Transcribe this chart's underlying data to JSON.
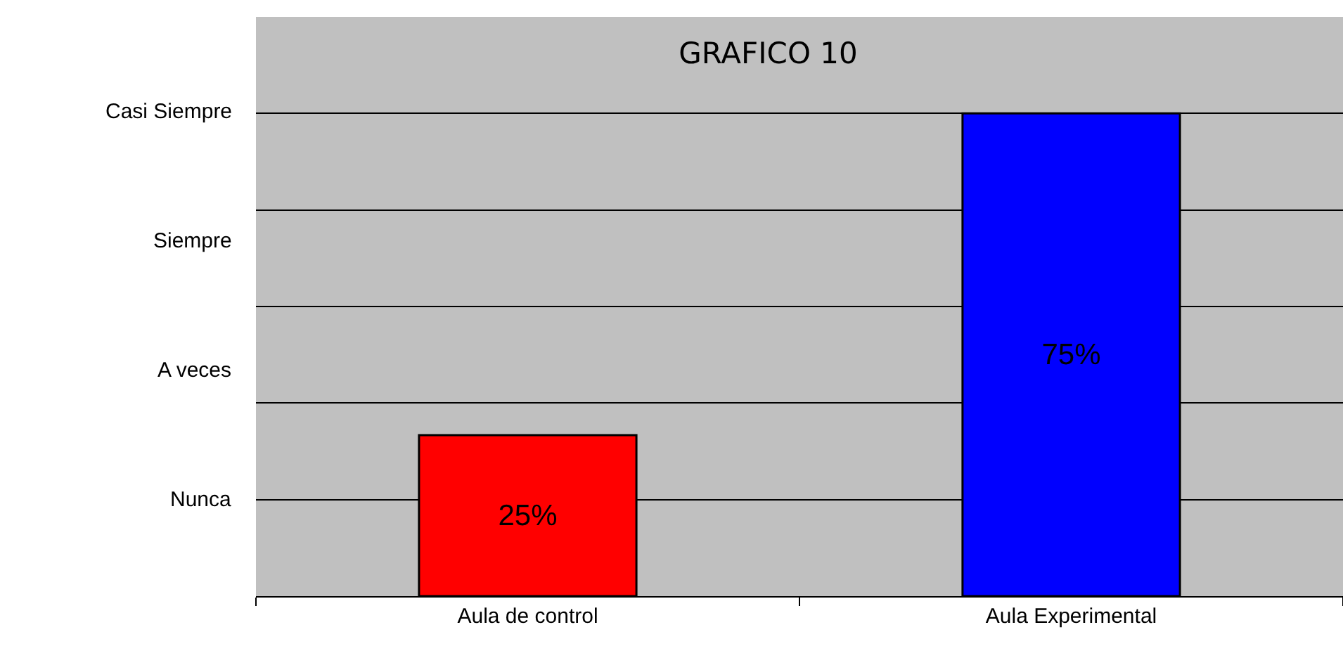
{
  "chart_data": {
    "type": "bar",
    "title": "GRAFICO 10",
    "categories": [
      "Aula de control",
      "Aula Experimental"
    ],
    "values": [
      25,
      75
    ],
    "colors": [
      "#ff0000",
      "#0000ff"
    ],
    "value_labels": [
      "25%",
      "75%"
    ],
    "annotations": [
      "Nunca",
      "A veces",
      "Siempre",
      "Casi Siempre"
    ],
    "grid": "y"
  }
}
